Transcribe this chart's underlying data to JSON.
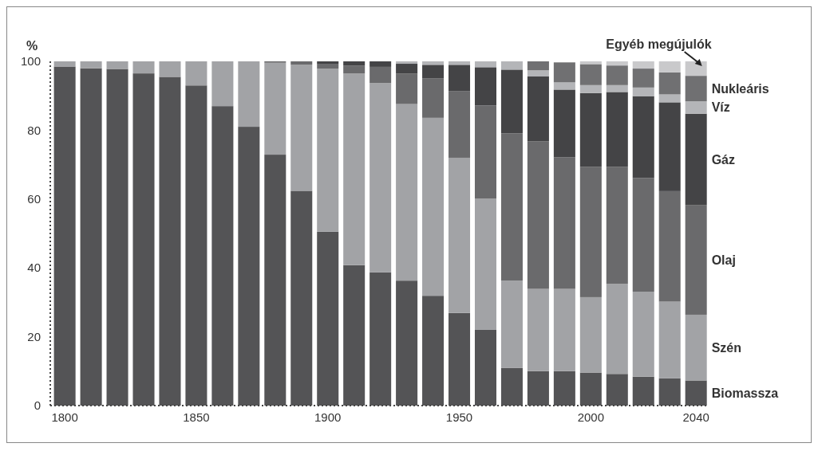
{
  "chart_data": {
    "type": "bar",
    "stacked": true,
    "ylabel": "%",
    "x": [
      1800,
      1810,
      1820,
      1830,
      1840,
      1850,
      1860,
      1870,
      1880,
      1890,
      1900,
      1910,
      1920,
      1930,
      1940,
      1950,
      1960,
      1970,
      1980,
      1990,
      2000,
      2010,
      2020,
      2030,
      2040
    ],
    "xlim": [
      1794.5,
      2044.5
    ],
    "xticks": [
      1800,
      1850,
      1900,
      1950,
      2000,
      2040
    ],
    "ylim": [
      0,
      100
    ],
    "yticks": [
      0,
      20,
      40,
      60,
      80,
      100
    ],
    "series": [
      {
        "name": "Biomassza",
        "color": "#545456",
        "values": [
          98.5,
          98,
          97.8,
          96.5,
          95.5,
          93,
          87,
          81,
          72.9,
          62.4,
          50.5,
          40.8,
          38.7,
          36.3,
          31.9,
          26.9,
          22,
          10.9,
          10,
          10,
          9.6,
          9.2,
          8.4,
          7.9,
          7.3
        ]
      },
      {
        "name": "Szén",
        "color": "#a2a3a6",
        "values": [
          1.5,
          2,
          2.2,
          3.5,
          4.5,
          7,
          13,
          19,
          26.7,
          36.6,
          47.4,
          55.7,
          55,
          51.3,
          51.7,
          45.1,
          38.1,
          25.4,
          23.9,
          23.9,
          21.9,
          26.2,
          24.7,
          22.3,
          19.1
        ]
      },
      {
        "name": "Olaj",
        "color": "#6a6a6c",
        "values": [
          0,
          0,
          0,
          0,
          0,
          0,
          0,
          0,
          0.4,
          1,
          1.4,
          2.3,
          4.7,
          8.8,
          11.5,
          19.4,
          27.1,
          42.8,
          42.9,
          38.2,
          37.9,
          34,
          33,
          32.1,
          31.9
        ]
      },
      {
        "name": "Gáz",
        "color": "#444446",
        "values": [
          0,
          0,
          0,
          0,
          0,
          0,
          0,
          0,
          0,
          0,
          0.7,
          1.2,
          1.6,
          2.9,
          3.9,
          7.6,
          11.1,
          18.5,
          18.8,
          19.7,
          21.4,
          21.7,
          23.8,
          25.8,
          26.5
        ]
      },
      {
        "name": "Víz",
        "color": "#b4b5b8",
        "values": [
          0,
          0,
          0,
          0,
          0,
          0,
          0,
          0,
          0,
          0,
          0,
          0,
          0,
          0.7,
          1,
          1,
          1.7,
          2.4,
          1.8,
          2.1,
          2.3,
          2,
          2.5,
          2.3,
          3.6
        ]
      },
      {
        "name": "Nukleáris",
        "color": "#707072",
        "values": [
          0,
          0,
          0,
          0,
          0,
          0,
          0,
          0,
          0,
          0,
          0,
          0,
          0,
          0,
          0,
          0,
          0,
          0,
          2.6,
          5.8,
          6.1,
          5.7,
          5.5,
          6.4,
          7.4
        ]
      },
      {
        "name": "Egyéb megújulók",
        "color": "#c9c9cb",
        "values": [
          0,
          0,
          0,
          0,
          0,
          0,
          0,
          0,
          0,
          0,
          0,
          0,
          0,
          0,
          0,
          0,
          0,
          0,
          0,
          null,
          0.8,
          1.2,
          2.1,
          3.2,
          4.2
        ]
      }
    ]
  }
}
